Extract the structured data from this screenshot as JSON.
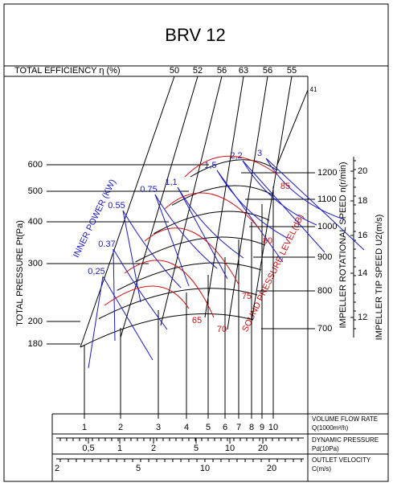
{
  "title": "BRV 12",
  "efficiency": {
    "label": "TOTAL EFFICIENCY η (%)",
    "ticks": [
      "50",
      "52",
      "56",
      "63",
      "56",
      "55",
      "41"
    ]
  },
  "pressure": {
    "label": "TOTAL PRESSURE Pt(Pa)",
    "ticks": [
      "600",
      "500",
      "400",
      "300",
      "200",
      "180"
    ]
  },
  "speed": {
    "label": "IMPELLER ROTATIONAL SPEED n(r/min)",
    "ticks": [
      "1200",
      "1100",
      "1000",
      "900",
      "800",
      "700"
    ]
  },
  "tip_speed": {
    "label": "IMPELLER TIP SPEED U2(m/s)",
    "ticks": [
      "20",
      "18",
      "16",
      "14",
      "12"
    ]
  },
  "power": {
    "label": "INNER POWER (KW)",
    "ticks": [
      "0,25",
      "0.37",
      "0.55",
      "0.75",
      "1,1",
      "1,5",
      "2,2",
      "3"
    ]
  },
  "sound": {
    "label": "SOUND PRESSURE LEVEL(dB)",
    "ticks": [
      "65",
      "70",
      "75",
      "80",
      "85"
    ]
  },
  "flow": {
    "label": "VOLUME FLOW RATE",
    "unit": "Q(1000m³/h)",
    "ticks": [
      "1",
      "2",
      "3",
      "4",
      "5",
      "6",
      "7",
      "8",
      "9",
      "10"
    ]
  },
  "dynamic": {
    "label": "DYNAMIC PRESSURE",
    "unit": "Pd(10Pa)",
    "ticks": [
      "0,5",
      "1",
      "2",
      "5",
      "10",
      "20"
    ]
  },
  "velocity": {
    "label": "OUTLET VELOCITY",
    "unit": "C(m/s)",
    "ticks": [
      "2",
      "5",
      "10",
      "20"
    ]
  }
}
